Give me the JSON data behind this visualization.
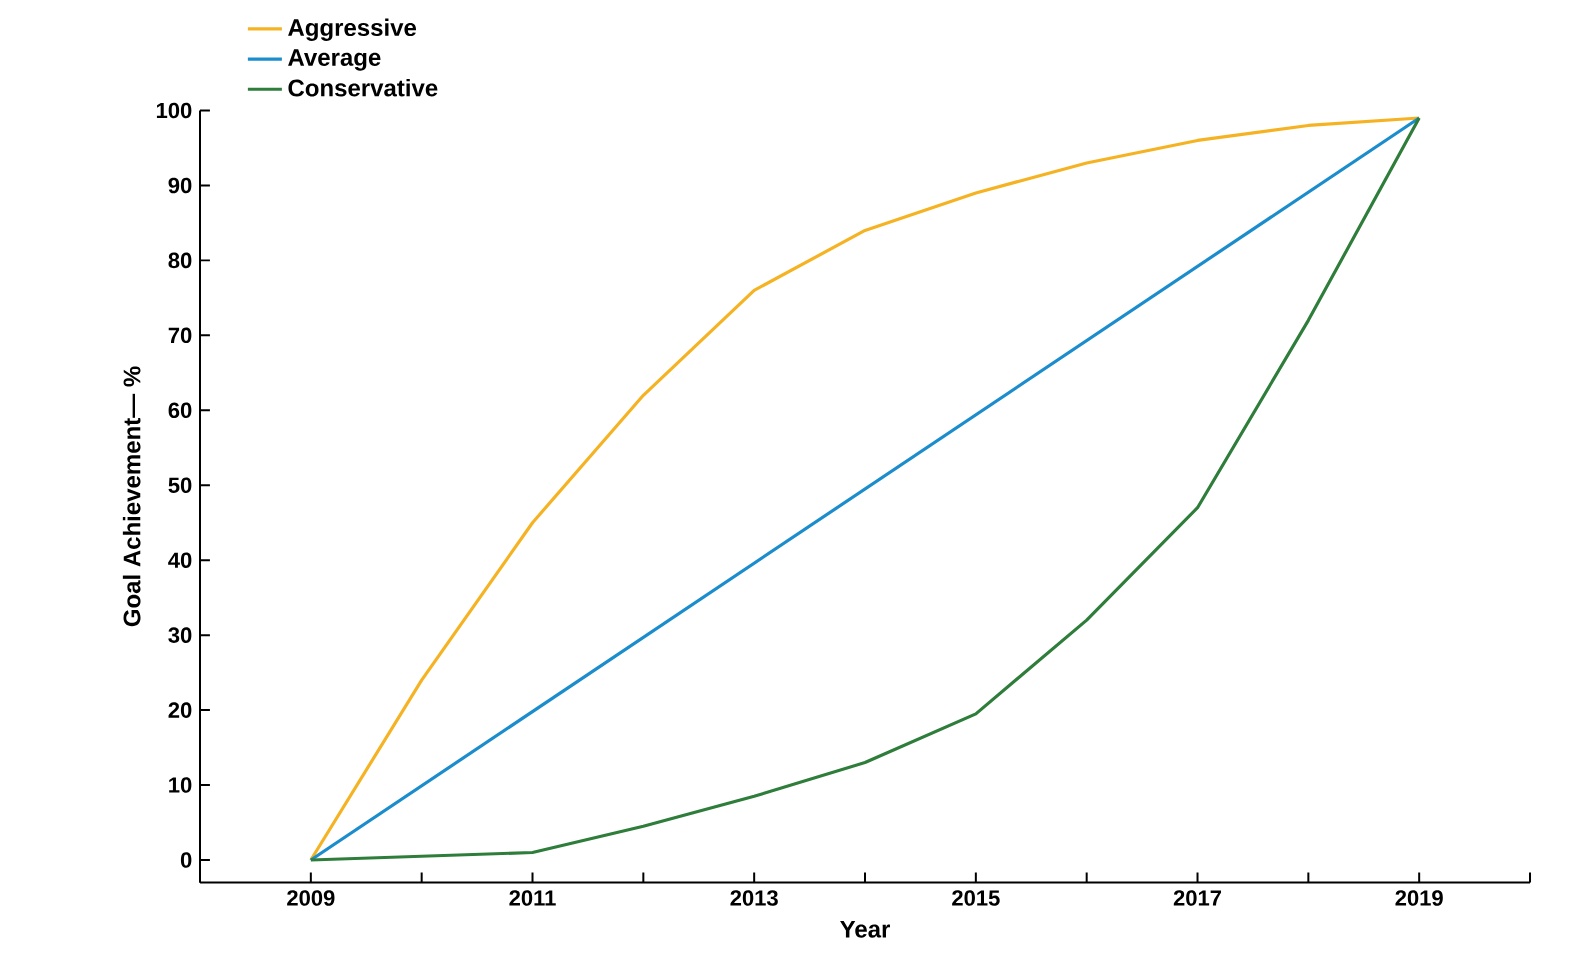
{
  "chart_data": {
    "type": "line",
    "xlabel": "Year",
    "ylabel": "Goal Achievement— %",
    "xlim": [
      2008,
      2020
    ],
    "xticks": [
      {
        "value": 2008,
        "label": null
      },
      2009,
      {
        "value": 2010,
        "label": null
      },
      2011,
      {
        "value": 2012,
        "label": null
      },
      2013,
      {
        "value": 2014,
        "label": null
      },
      2015,
      {
        "value": 2016,
        "label": null
      },
      2017,
      {
        "value": 2018,
        "label": null
      },
      2019,
      {
        "value": 2020,
        "label": null
      }
    ],
    "ylim": [
      -3,
      100
    ],
    "yticks": [
      0,
      10,
      20,
      30,
      40,
      50,
      60,
      70,
      80,
      90,
      100
    ],
    "grid": false,
    "legend": "top left",
    "marker": "none",
    "line_style": "solid",
    "series": [
      {
        "name": "Aggressive",
        "color": "#f5b323",
        "x": [
          2009,
          2010,
          2011,
          2012,
          2013,
          2014,
          2015,
          2016,
          2017,
          2018,
          2019
        ],
        "values": [
          0,
          24,
          45,
          62,
          76,
          84,
          89,
          93,
          96,
          98,
          99
        ]
      },
      {
        "name": "Average",
        "color": "#1b8ccc",
        "x": [
          2009,
          2019
        ],
        "values": [
          0,
          99
        ]
      },
      {
        "name": "Conservative",
        "color": "#2e7d3a",
        "x": [
          2009,
          2010,
          2011,
          2012,
          2013,
          2014,
          2015,
          2016,
          2017,
          2018,
          2019
        ],
        "values": [
          0,
          0.5,
          1,
          4.5,
          8.5,
          13,
          19.5,
          32,
          47,
          72,
          99
        ]
      }
    ]
  }
}
